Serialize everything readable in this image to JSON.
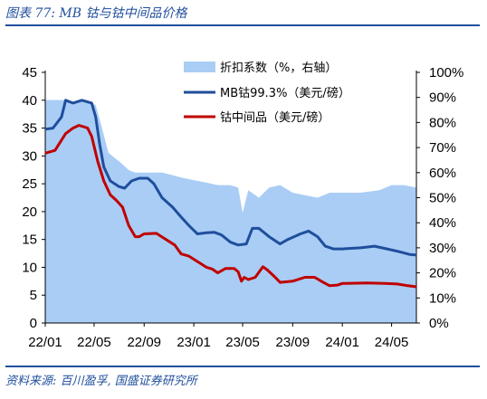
{
  "figure": {
    "title": "图表 77:  MB 钴与钴中间品价格",
    "source": "资料来源: 百川盈孚, 国盛证券研究所"
  },
  "colors": {
    "area": "#a9cdf5",
    "mb_line": "#1f4e9c",
    "mid_line": "#c00000",
    "rule": "#1f4e9c"
  },
  "chart_data": {
    "type": "line",
    "x_tick_labels": [
      "22/01",
      "22/05",
      "22/09",
      "23/01",
      "23/05",
      "23/09",
      "24/01",
      "24/05"
    ],
    "x_range": [
      "2022-01",
      "2024-07"
    ],
    "y_left": {
      "ticks": [
        "0",
        "5",
        "10",
        "15",
        "20",
        "25",
        "30",
        "35",
        "40",
        "45"
      ],
      "range": [
        0,
        45
      ]
    },
    "y_right": {
      "ticks": [
        "0%",
        "10%",
        "20%",
        "30%",
        "40%",
        "50%",
        "60%",
        "70%",
        "80%",
        "90%",
        "100%"
      ],
      "range": [
        0,
        100
      ]
    },
    "legend_position": "top-right",
    "grid": false,
    "series": [
      {
        "name": "折扣系数（%，右轴）",
        "type": "area",
        "axis": "right",
        "points": [
          [
            "2022-01-01",
            89
          ],
          [
            "2022-02-15",
            89
          ],
          [
            "2022-03-20",
            88
          ],
          [
            "2022-04-10",
            88.5
          ],
          [
            "2022-05-05",
            87
          ],
          [
            "2022-05-20",
            78
          ],
          [
            "2022-06-05",
            68
          ],
          [
            "2022-06-20",
            66
          ],
          [
            "2022-07-05",
            64
          ],
          [
            "2022-07-25",
            61
          ],
          [
            "2022-08-10",
            60
          ],
          [
            "2022-09-15",
            60
          ],
          [
            "2022-10-15",
            60
          ],
          [
            "2022-11-10",
            59
          ],
          [
            "2022-12-01",
            58
          ],
          [
            "2023-01-01",
            57
          ],
          [
            "2023-02-01",
            56
          ],
          [
            "2023-03-01",
            55
          ],
          [
            "2023-04-01",
            55
          ],
          [
            "2023-04-20",
            54
          ],
          [
            "2023-05-01",
            44
          ],
          [
            "2023-05-15",
            53
          ],
          [
            "2023-06-10",
            50
          ],
          [
            "2023-07-05",
            54
          ],
          [
            "2023-08-01",
            55
          ],
          [
            "2023-09-01",
            52
          ],
          [
            "2023-10-01",
            51
          ],
          [
            "2023-11-01",
            50
          ],
          [
            "2023-12-01",
            52
          ],
          [
            "2024-01-01",
            52
          ],
          [
            "2024-02-15",
            52
          ],
          [
            "2024-04-01",
            53
          ],
          [
            "2024-05-01",
            55
          ],
          [
            "2024-06-01",
            55
          ],
          [
            "2024-07-01",
            54
          ]
        ]
      },
      {
        "name": "MB钴99.3%（美元/磅）",
        "type": "line",
        "axis": "left",
        "points": [
          [
            "2022-01-01",
            34.8
          ],
          [
            "2022-01-20",
            35
          ],
          [
            "2022-02-10",
            37
          ],
          [
            "2022-02-20",
            40
          ],
          [
            "2022-03-10",
            39.5
          ],
          [
            "2022-04-01",
            40
          ],
          [
            "2022-04-25",
            39.5
          ],
          [
            "2022-05-05",
            37
          ],
          [
            "2022-05-15",
            32
          ],
          [
            "2022-05-25",
            28
          ],
          [
            "2022-06-10",
            25.5
          ],
          [
            "2022-07-01",
            24.5
          ],
          [
            "2022-07-15",
            24.2
          ],
          [
            "2022-08-01",
            25.5
          ],
          [
            "2022-08-20",
            26
          ],
          [
            "2022-09-10",
            26
          ],
          [
            "2022-09-25",
            25
          ],
          [
            "2022-10-15",
            22.5
          ],
          [
            "2022-11-10",
            20.8
          ],
          [
            "2022-12-01",
            19
          ],
          [
            "2022-12-20",
            17.5
          ],
          [
            "2023-01-10",
            16
          ],
          [
            "2023-02-01",
            16.2
          ],
          [
            "2023-02-20",
            16.3
          ],
          [
            "2023-03-10",
            15.8
          ],
          [
            "2023-04-01",
            14.5
          ],
          [
            "2023-04-20",
            14
          ],
          [
            "2023-05-10",
            14.2
          ],
          [
            "2023-05-25",
            17
          ],
          [
            "2023-06-10",
            17
          ],
          [
            "2023-07-05",
            15.5
          ],
          [
            "2023-08-01",
            14.2
          ],
          [
            "2023-08-20",
            15
          ],
          [
            "2023-09-20",
            16
          ],
          [
            "2023-10-10",
            16.5
          ],
          [
            "2023-11-01",
            15.5
          ],
          [
            "2023-11-20",
            13.8
          ],
          [
            "2023-12-10",
            13.3
          ],
          [
            "2024-01-01",
            13.3
          ],
          [
            "2024-02-15",
            13.5
          ],
          [
            "2024-03-20",
            13.8
          ],
          [
            "2024-04-20",
            13.3
          ],
          [
            "2024-05-20",
            12.8
          ],
          [
            "2024-06-15",
            12.3
          ],
          [
            "2024-07-01",
            12.2
          ]
        ]
      },
      {
        "name": "钴中间品（美元/磅）",
        "type": "line",
        "axis": "left",
        "points": [
          [
            "2022-01-01",
            30.5
          ],
          [
            "2022-01-25",
            31
          ],
          [
            "2022-02-20",
            34
          ],
          [
            "2022-03-10",
            35
          ],
          [
            "2022-03-25",
            35.5
          ],
          [
            "2022-04-15",
            35
          ],
          [
            "2022-04-25",
            33.5
          ],
          [
            "2022-05-10",
            29
          ],
          [
            "2022-05-25",
            25.5
          ],
          [
            "2022-06-10",
            23
          ],
          [
            "2022-06-25",
            22
          ],
          [
            "2022-07-10",
            20.8
          ],
          [
            "2022-07-25",
            17.5
          ],
          [
            "2022-08-10",
            15.5
          ],
          [
            "2022-08-20",
            15.5
          ],
          [
            "2022-09-01",
            16
          ],
          [
            "2022-10-01",
            16.1
          ],
          [
            "2022-10-20",
            15.2
          ],
          [
            "2022-11-15",
            14
          ],
          [
            "2022-12-01",
            12.4
          ],
          [
            "2022-12-20",
            12
          ],
          [
            "2023-01-15",
            10.8
          ],
          [
            "2023-02-01",
            10
          ],
          [
            "2023-02-15",
            9.7
          ],
          [
            "2023-03-01",
            9
          ],
          [
            "2023-03-20",
            9.8
          ],
          [
            "2023-04-10",
            9.8
          ],
          [
            "2023-04-20",
            9.2
          ],
          [
            "2023-04-28",
            7.5
          ],
          [
            "2023-05-05",
            8.2
          ],
          [
            "2023-05-15",
            7.8
          ],
          [
            "2023-06-01",
            8.2
          ],
          [
            "2023-06-20",
            10.1
          ],
          [
            "2023-07-01",
            9.5
          ],
          [
            "2023-07-20",
            8.2
          ],
          [
            "2023-08-01",
            7.3
          ],
          [
            "2023-09-01",
            7.5
          ],
          [
            "2023-10-01",
            8.2
          ],
          [
            "2023-10-25",
            8.2
          ],
          [
            "2023-11-15",
            7.3
          ],
          [
            "2023-12-01",
            6.7
          ],
          [
            "2023-12-20",
            6.8
          ],
          [
            "2024-01-01",
            7.1
          ],
          [
            "2024-03-01",
            7.2
          ],
          [
            "2024-04-15",
            7.1
          ],
          [
            "2024-05-15",
            7
          ],
          [
            "2024-06-10",
            6.7
          ],
          [
            "2024-07-01",
            6.5
          ]
        ]
      }
    ]
  }
}
